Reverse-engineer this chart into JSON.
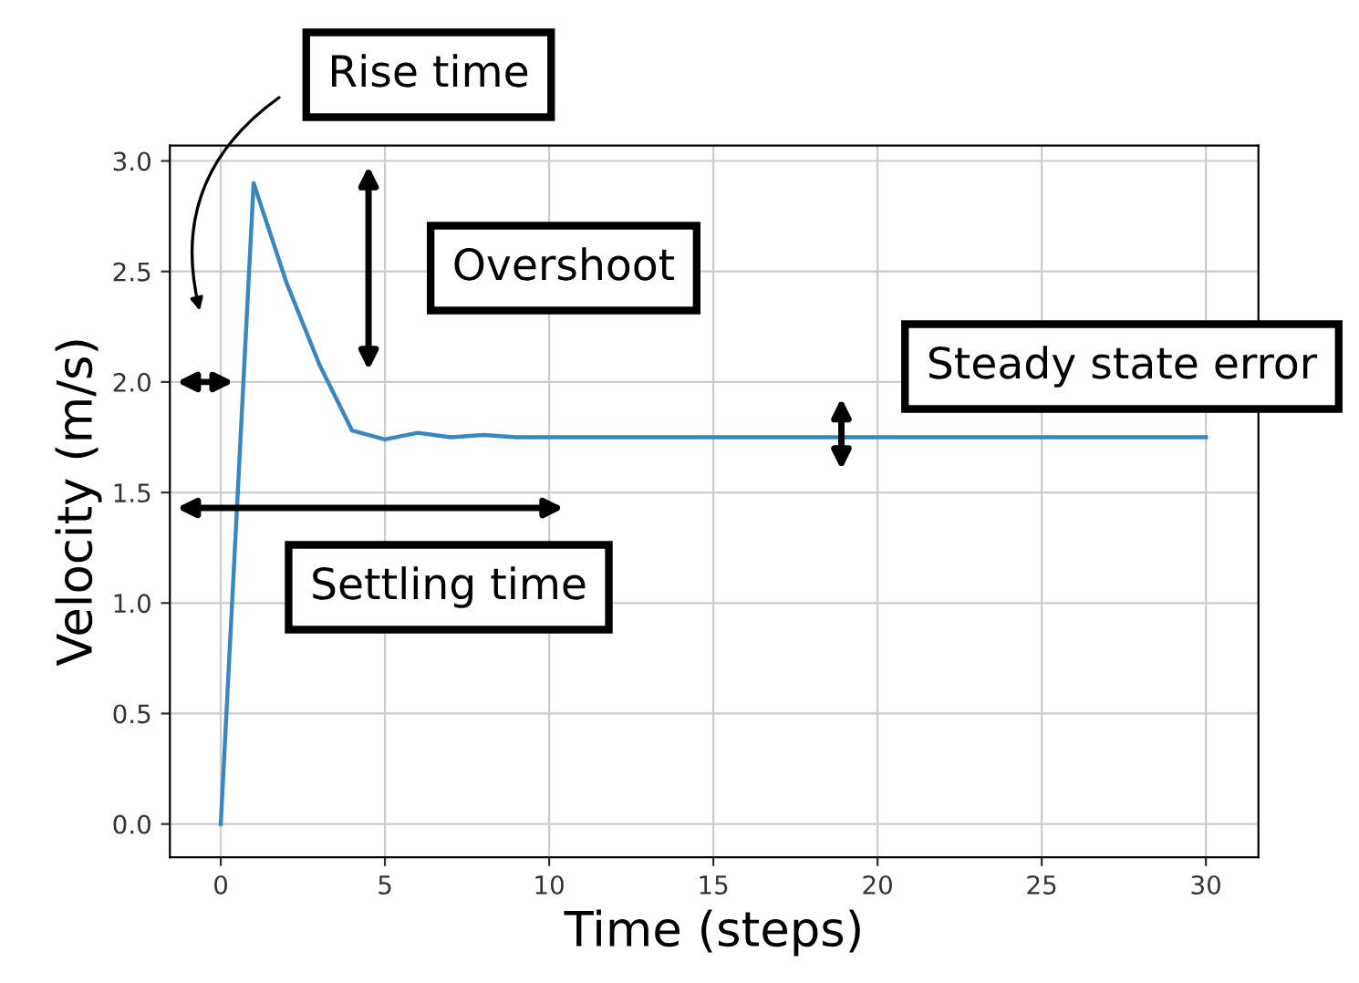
{
  "chart_data": {
    "type": "line",
    "xlabel": "Time (steps)",
    "ylabel": "Velocity (m/s)",
    "x": [
      0,
      1,
      2,
      3,
      4,
      5,
      6,
      7,
      8,
      9,
      10,
      12,
      15,
      20,
      25,
      30
    ],
    "series": [
      {
        "color": "#3a87c0",
        "values": [
          0,
          2.9,
          2.45,
          2.08,
          1.78,
          1.74,
          1.77,
          1.75,
          1.76,
          1.75,
          1.75,
          1.75,
          1.75,
          1.75,
          1.75,
          1.75
        ]
      }
    ],
    "xlim": [
      -1.55,
      31.6
    ],
    "ylim": [
      -0.15,
      3.07
    ],
    "xticks": [
      0,
      5,
      10,
      15,
      20,
      25,
      30
    ],
    "yticks": [
      {
        "value": 0,
        "label": "0.0"
      },
      0.5,
      {
        "value": 1,
        "label": "1.0"
      },
      1.5,
      {
        "value": 2,
        "label": "2.0"
      },
      2.5,
      {
        "value": 3,
        "label": "3.0"
      }
    ],
    "grid": true,
    "marker": "none",
    "line_style": "solid",
    "annotations": [
      "Rise time",
      "Overshoot",
      "Steady state error",
      "Settling time"
    ]
  }
}
